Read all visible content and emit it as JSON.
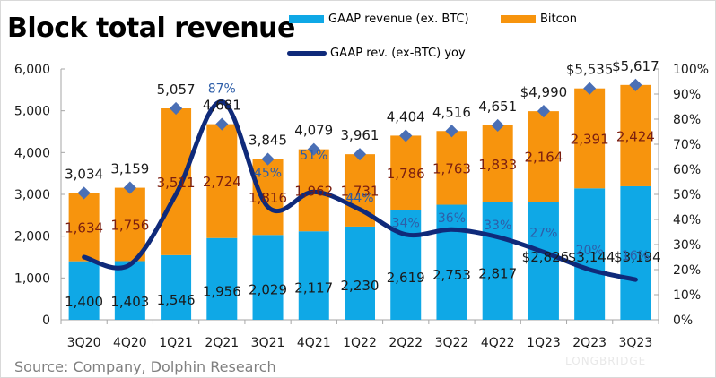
{
  "colors": {
    "gaap_bar": "#0fa8e6",
    "bitcoin_bar": "#f7940d",
    "yoy_line": "#0f2a7a",
    "total_marker": "#4a6fb5",
    "yoy_label": "#2e5ea8",
    "bitcoin_label": "#7a1e10",
    "axis": "#a6a6a6",
    "text": "#1a1a1a"
  },
  "chart_data": {
    "type": "bar",
    "stacked": true,
    "title": "Block total revenue",
    "source": "Source: Company, Dolphin Research",
    "watermark": "LONGBRIDGE",
    "categories": [
      "3Q20",
      "4Q20",
      "1Q21",
      "2Q21",
      "3Q21",
      "4Q21",
      "1Q22",
      "2Q22",
      "3Q22",
      "4Q22",
      "1Q23",
      "2Q23",
      "3Q23"
    ],
    "series": [
      {
        "name": "GAAP revenue (ex. BTC)",
        "type": "bar",
        "axis": "left",
        "values": [
          1400,
          1403,
          1546,
          1956,
          2029,
          2117,
          2230,
          2619,
          2753,
          2817,
          2826,
          3144,
          3194
        ],
        "labels": [
          "1,400",
          "1,403",
          "1,546",
          "1,956",
          "2,029",
          "2,117",
          "2,230",
          "2,619",
          "2,753",
          "2,817",
          "$2,826",
          "$3,144",
          "$3,194"
        ]
      },
      {
        "name": "Bitcon",
        "type": "bar",
        "axis": "left",
        "values": [
          1634,
          1756,
          3511,
          2724,
          1816,
          1962,
          1731,
          1786,
          1763,
          1833,
          2164,
          2391,
          2424
        ],
        "labels": [
          "1,634",
          "1,756",
          "3,511",
          "2,724",
          "1,816",
          "1,962",
          "1,731",
          "1,786",
          "1,763",
          "1,833",
          "2,164",
          "2,391",
          "2,424"
        ]
      },
      {
        "name": "Total",
        "type": "marker",
        "axis": "left",
        "values": [
          3034,
          3159,
          5057,
          4681,
          3845,
          4079,
          3961,
          4404,
          4516,
          4651,
          4990,
          5535,
          5617
        ],
        "labels": [
          "3,034",
          "3,159",
          "5,057",
          "4,681",
          "3,845",
          "4,079",
          "3,961",
          "4,404",
          "4,516",
          "4,651",
          "$4,990",
          "$5,535",
          "$5,617"
        ]
      },
      {
        "name": "GAAP rev. (ex-BTC) yoy",
        "type": "line",
        "axis": "right",
        "values": [
          0.25,
          0.22,
          0.5,
          0.87,
          0.45,
          0.51,
          0.44,
          0.34,
          0.36,
          0.33,
          0.27,
          0.2,
          0.16
        ],
        "labels": [
          "",
          "",
          "",
          "87%",
          "45%",
          "51%",
          "44%",
          "34%",
          "36%",
          "33%",
          "27%",
          "20%",
          "16%"
        ]
      }
    ],
    "legend": {
      "position": "top",
      "entries": [
        "GAAP revenue (ex. BTC)",
        "Bitcon",
        "GAAP rev. (ex-BTC) yoy"
      ]
    },
    "left_axis": {
      "ylim": [
        0,
        6000
      ],
      "ticks": [
        0,
        1000,
        2000,
        3000,
        4000,
        5000,
        6000
      ],
      "tick_labels": [
        "0",
        "1,000",
        "2,000",
        "3,000",
        "4,000",
        "5,000",
        "6,000"
      ]
    },
    "right_axis": {
      "ylim": [
        0,
        1
      ],
      "ticks": [
        0,
        0.1,
        0.2,
        0.3,
        0.4,
        0.5,
        0.6,
        0.7,
        0.8,
        0.9,
        1.0
      ],
      "tick_labels": [
        "0%",
        "10%",
        "20%",
        "30%",
        "40%",
        "50%",
        "60%",
        "70%",
        "80%",
        "90%",
        "100%"
      ]
    },
    "grid": false,
    "xlabel": "",
    "ylabel": ""
  }
}
